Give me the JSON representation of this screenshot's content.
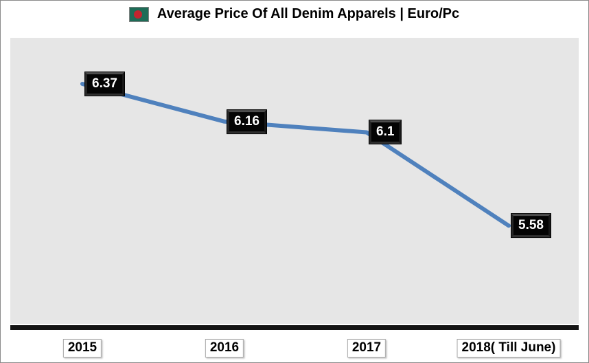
{
  "title": {
    "text": "Average Price Of All Denim Apparels | Euro/Pc",
    "icon": "bangladesh-flag-icon"
  },
  "colors": {
    "line": "#4f81bd",
    "plot_background": "#e6e6e6",
    "axis_bar": "#141414",
    "data_label_bg": "#040404",
    "data_label_text": "#ffffff",
    "x_label_bg": "#ffffff",
    "x_label_text": "#000000",
    "flag_green": "#1e6c57",
    "flag_red": "#c2252f",
    "title_text": "#000000"
  },
  "chart_data": {
    "type": "line",
    "title": "Average Price Of All Denim Apparels | Euro/Pc",
    "categories": [
      "2015",
      "2016",
      "2017",
      "2018( Till June)"
    ],
    "series": [
      {
        "name": "Average Price Of All Denim Apparels (Euro/Pc)",
        "values": [
          6.37,
          6.16,
          6.1,
          5.58
        ]
      }
    ],
    "data_labels": [
      "6.37",
      "6.16",
      "6.1",
      "5.58"
    ],
    "xlabel": "",
    "ylabel": "",
    "ylim": [
      5.0,
      6.6
    ],
    "grid": false,
    "legend": "none",
    "marker": "none",
    "line_style": "solid"
  }
}
